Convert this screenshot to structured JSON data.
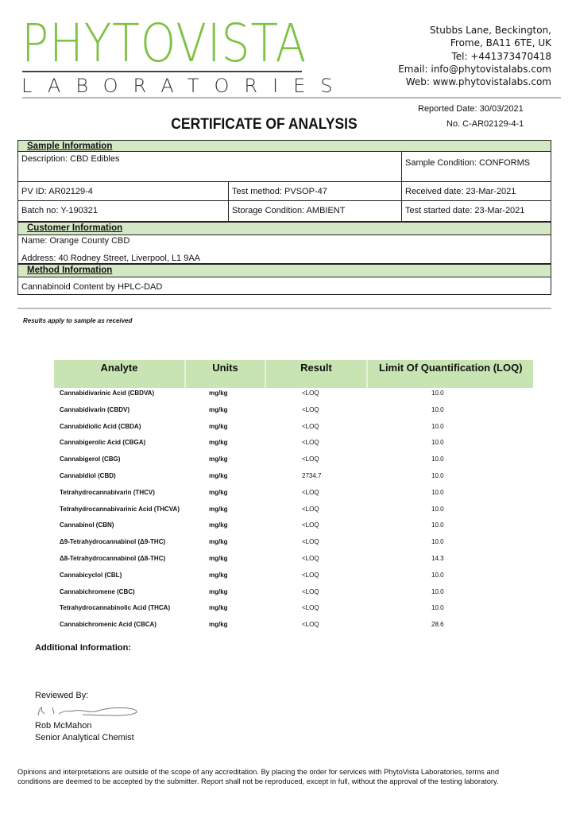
{
  "logo": {
    "name": "PHYTOVISTA",
    "sub": "LABORATORIES",
    "color": "#7dc242"
  },
  "contact": [
    "Stubbs Lane, Beckington,",
    "Frome, BA11 6TE, UK",
    "Tel: +441373470418",
    "Email: info@phytovistalabs.com",
    "Web: www.phytovistalabs.com"
  ],
  "title": "CERTIFICATE OF ANALYSIS",
  "reported_date": "Reported Date: 30/03/2021",
  "cert_no": "No. C-AR02129-4-1",
  "sample": {
    "header": "Sample Information",
    "description": "Description: CBD Edibles",
    "condition": "Sample Condition: CONFORMS",
    "pv_id": "PV ID: AR02129-4",
    "test_method": "Test method: PVSOP-47",
    "received": "Received date: 23-Mar-2021",
    "batch": "Batch no: Y-190321",
    "storage": "Storage Condition: AMBIENT",
    "test_started": "Test started date: 23-Mar-2021"
  },
  "customer": {
    "header": "Customer Information",
    "name": "Name:   Orange County CBD",
    "address": "Address:   40 Rodney Street, Liverpool, L1 9AA"
  },
  "method": {
    "header": "Method Information",
    "text": "Cannabinoid Content by HPLC-DAD"
  },
  "note": "Results apply to sample as received",
  "results": {
    "headers": [
      "Analyte",
      "Units",
      "Result",
      "Limit Of Quantification (LOQ)"
    ],
    "rows": [
      [
        "Cannabidivarinic Acid (CBDVA)",
        "mg/kg",
        "<LOQ",
        "10.0"
      ],
      [
        "Cannabidivarin (CBDV)",
        "mg/kg",
        "<LOQ",
        "10.0"
      ],
      [
        "Cannabidiolic Acid (CBDA)",
        "mg/kg",
        "<LOQ",
        "10.0"
      ],
      [
        "Cannabigerolic Acid (CBGA)",
        "mg/kg",
        "<LOQ",
        "10.0"
      ],
      [
        "Cannabigerol (CBG)",
        "mg/kg",
        "<LOQ",
        "10.0"
      ],
      [
        "Cannabidiol (CBD)",
        "mg/kg",
        "2734.7",
        "10.0"
      ],
      [
        "Tetrahydrocannabivarin (THCV)",
        "mg/kg",
        "<LOQ",
        "10.0"
      ],
      [
        "Tetrahydrocannabivarinic Acid (THCVA)",
        "mg/kg",
        "<LOQ",
        "10.0"
      ],
      [
        "Cannabinol (CBN)",
        "mg/kg",
        "<LOQ",
        "10.0"
      ],
      [
        "Δ9-Tetrahydrocannabinol (Δ9-THC)",
        "mg/kg",
        "<LOQ",
        "10.0"
      ],
      [
        "Δ8-Tetrahydrocannabinol (Δ8-THC)",
        "mg/kg",
        "<LOQ",
        "14.3"
      ],
      [
        "Cannabicyclol (CBL)",
        "mg/kg",
        "<LOQ",
        "10.0"
      ],
      [
        "Cannabichromene (CBC)",
        "mg/kg",
        "<LOQ",
        "10.0"
      ],
      [
        "Tetrahydrocannabinolic Acid (THCA)",
        "mg/kg",
        "<LOQ",
        "10.0"
      ],
      [
        "Cannabichromenic Acid (CBCA)",
        "mg/kg",
        "<LOQ",
        "28.6"
      ]
    ]
  },
  "additional": "Additional Information:",
  "reviewed_by": "Reviewed By:",
  "reviewer": {
    "name": "Rob McMahon",
    "role": "Senior Analytical Chemist"
  },
  "footer": "Opinions and interpretations are outside of the scope of any accreditation. By placing the order for services with PhytoVista Laboratories, terms and conditions are deemed to be accepted by the submitter. Report shall not be reproduced, except in full, without the approval of the testing laboratory."
}
